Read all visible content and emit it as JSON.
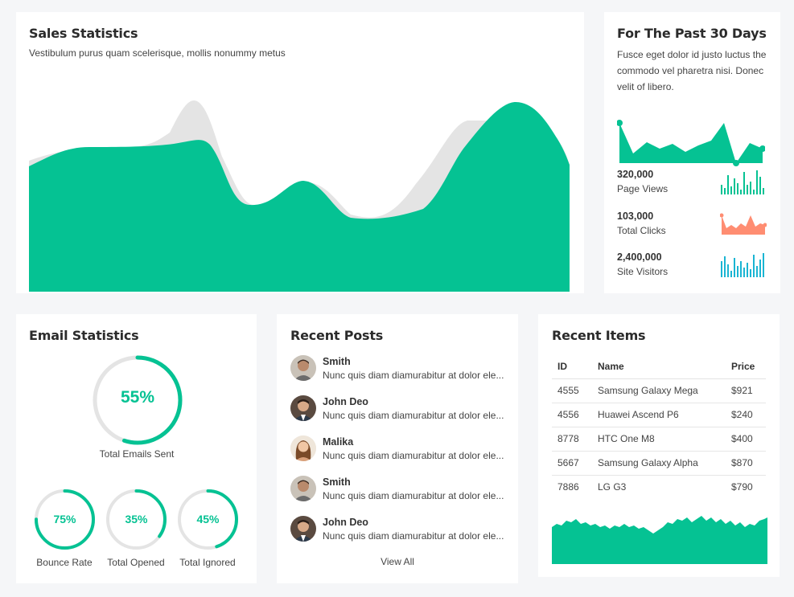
{
  "sales": {
    "title": "Sales Statistics",
    "subtitle": "Vestibulum purus quam scelerisque, mollis nonummy metus"
  },
  "past": {
    "title": "For The Past 30 Days",
    "description": "Fusce eget dolor id justo luctus the commodo vel pharetra nisi. Donec velit of libero.",
    "stats": [
      {
        "value": "320,000",
        "label": "Page Views",
        "color": "#05c293"
      },
      {
        "value": "103,000",
        "label": "Total Clicks",
        "color": "#ff8d72"
      },
      {
        "value": "2,400,000",
        "label": "Site Visitors",
        "color": "#1ab5d3"
      }
    ]
  },
  "email": {
    "title": "Email Statistics",
    "main": {
      "percent": "55%",
      "value": 55,
      "label": "Total Emails Sent"
    },
    "small": [
      {
        "percent": "75%",
        "value": 75,
        "label": "Bounce Rate"
      },
      {
        "percent": "35%",
        "value": 35,
        "label": "Total Opened"
      },
      {
        "percent": "45%",
        "value": 45,
        "label": "Total Ignored"
      }
    ]
  },
  "posts": {
    "title": "Recent Posts",
    "items": [
      {
        "name": "Smith",
        "text": "Nunc quis diam diamurabitur at dolor ele..."
      },
      {
        "name": "John Deo",
        "text": "Nunc quis diam diamurabitur at dolor ele..."
      },
      {
        "name": "Malika",
        "text": "Nunc quis diam diamurabitur at dolor ele..."
      },
      {
        "name": "Smith",
        "text": "Nunc quis diam diamurabitur at dolor ele..."
      },
      {
        "name": "John Deo",
        "text": "Nunc quis diam diamurabitur at dolor ele..."
      }
    ],
    "view_all": "View All"
  },
  "items": {
    "title": "Recent Items",
    "columns": [
      "ID",
      "Name",
      "Price"
    ],
    "rows": [
      [
        "4555",
        "Samsung Galaxy Mega",
        "$921"
      ],
      [
        "4556",
        "Huawei Ascend P6",
        "$240"
      ],
      [
        "8778",
        "HTC One M8",
        "$400"
      ],
      [
        "5667",
        "Samsung Galaxy Alpha",
        "$870"
      ],
      [
        "7886",
        "LG G3",
        "$790"
      ]
    ]
  },
  "colors": {
    "accent": "#05c293",
    "secondary": "#e4e4e4",
    "background": "#f5f6f8"
  }
}
